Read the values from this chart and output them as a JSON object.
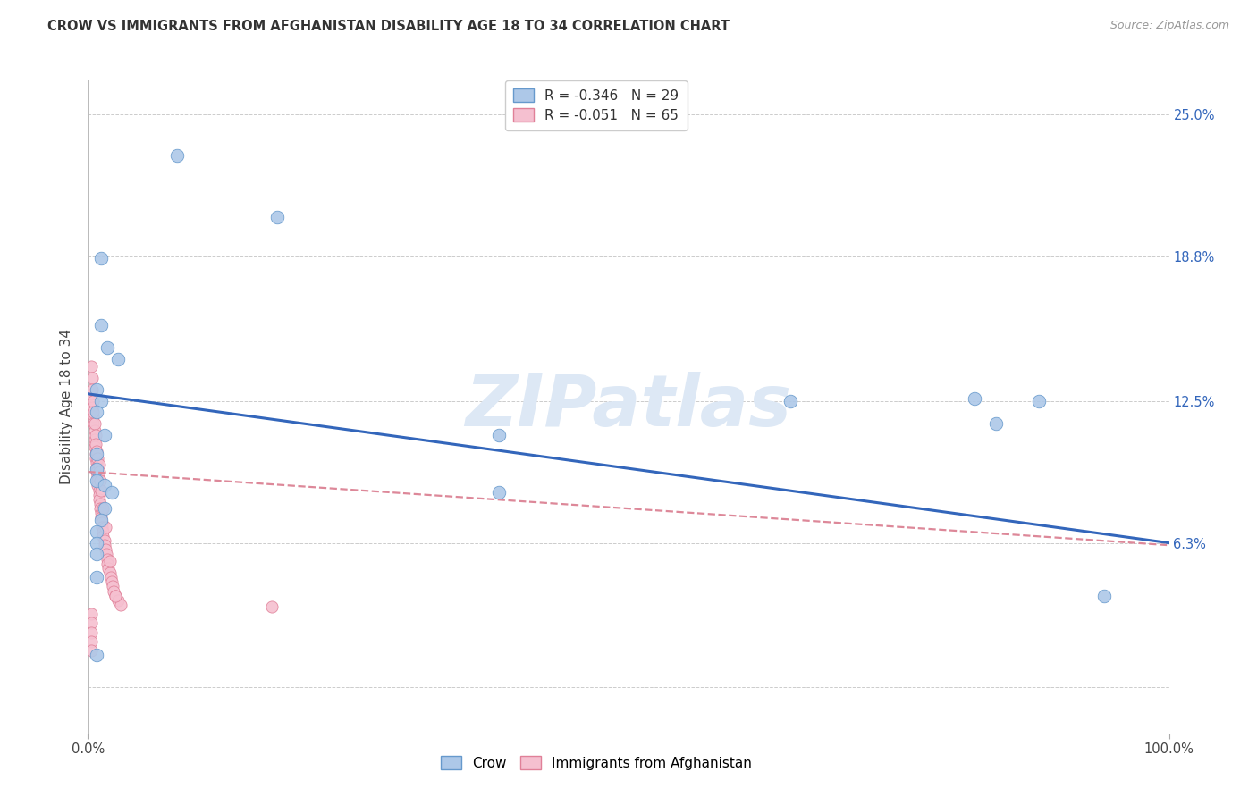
{
  "title": "CROW VS IMMIGRANTS FROM AFGHANISTAN DISABILITY AGE 18 TO 34 CORRELATION CHART",
  "source": "Source: ZipAtlas.com",
  "ylabel": "Disability Age 18 to 34",
  "xlim": [
    0.0,
    1.0
  ],
  "ylim": [
    -0.02,
    0.265
  ],
  "yticks": [
    0.0,
    0.063,
    0.125,
    0.188,
    0.25
  ],
  "ytick_labels": [
    "",
    "6.3%",
    "12.5%",
    "18.8%",
    "25.0%"
  ],
  "xtick_labels": [
    "0.0%",
    "100.0%"
  ],
  "background_color": "#ffffff",
  "grid_color": "#cccccc",
  "crow_color": "#adc8e8",
  "crow_edge_color": "#6699cc",
  "afg_color": "#f5c0d0",
  "afg_edge_color": "#e08098",
  "crow_R": "-0.346",
  "crow_N": "29",
  "afg_R": "-0.051",
  "afg_N": "65",
  "crow_points_x": [
    0.082,
    0.175,
    0.012,
    0.012,
    0.018,
    0.028,
    0.008,
    0.012,
    0.008,
    0.015,
    0.008,
    0.008,
    0.008,
    0.015,
    0.022,
    0.015,
    0.012,
    0.38,
    0.38,
    0.65,
    0.82,
    0.84,
    0.88,
    0.94,
    0.008,
    0.008,
    0.008,
    0.008,
    0.008
  ],
  "crow_points_y": [
    0.232,
    0.205,
    0.187,
    0.158,
    0.148,
    0.143,
    0.13,
    0.125,
    0.12,
    0.11,
    0.102,
    0.095,
    0.09,
    0.088,
    0.085,
    0.078,
    0.073,
    0.11,
    0.085,
    0.125,
    0.126,
    0.115,
    0.125,
    0.04,
    0.068,
    0.063,
    0.058,
    0.048,
    0.014
  ],
  "afg_points_x": [
    0.003,
    0.004,
    0.005,
    0.005,
    0.006,
    0.006,
    0.006,
    0.007,
    0.007,
    0.008,
    0.008,
    0.008,
    0.009,
    0.009,
    0.009,
    0.01,
    0.01,
    0.01,
    0.011,
    0.011,
    0.012,
    0.012,
    0.013,
    0.013,
    0.014,
    0.014,
    0.015,
    0.015,
    0.016,
    0.017,
    0.018,
    0.018,
    0.019,
    0.02,
    0.021,
    0.022,
    0.023,
    0.024,
    0.025,
    0.028,
    0.03,
    0.003,
    0.004,
    0.004,
    0.005,
    0.005,
    0.006,
    0.007,
    0.007,
    0.008,
    0.009,
    0.01,
    0.01,
    0.011,
    0.012,
    0.014,
    0.016,
    0.02,
    0.025,
    0.17,
    0.003,
    0.003,
    0.003,
    0.003,
    0.003
  ],
  "afg_points_y": [
    0.128,
    0.122,
    0.118,
    0.115,
    0.112,
    0.108,
    0.105,
    0.102,
    0.1,
    0.098,
    0.096,
    0.094,
    0.092,
    0.09,
    0.088,
    0.086,
    0.084,
    0.082,
    0.08,
    0.078,
    0.076,
    0.074,
    0.072,
    0.07,
    0.068,
    0.066,
    0.064,
    0.062,
    0.06,
    0.058,
    0.056,
    0.054,
    0.052,
    0.05,
    0.048,
    0.046,
    0.044,
    0.042,
    0.04,
    0.038,
    0.036,
    0.14,
    0.135,
    0.13,
    0.125,
    0.12,
    0.115,
    0.11,
    0.106,
    0.103,
    0.1,
    0.097,
    0.094,
    0.09,
    0.086,
    0.078,
    0.07,
    0.055,
    0.04,
    0.035,
    0.032,
    0.028,
    0.024,
    0.02,
    0.016
  ],
  "crow_line_x": [
    0.0,
    1.0
  ],
  "crow_line_y": [
    0.128,
    0.063
  ],
  "afg_line_x": [
    0.0,
    1.0
  ],
  "afg_line_y": [
    0.094,
    0.062
  ],
  "crow_line_color": "#3366bb",
  "afg_line_color": "#dd8899",
  "watermark_text": "ZIPatlas",
  "watermark_color": "#dde8f5",
  "legend_top_label1": "R = -0.346   N = 29",
  "legend_top_label2": "R = -0.051   N = 65"
}
